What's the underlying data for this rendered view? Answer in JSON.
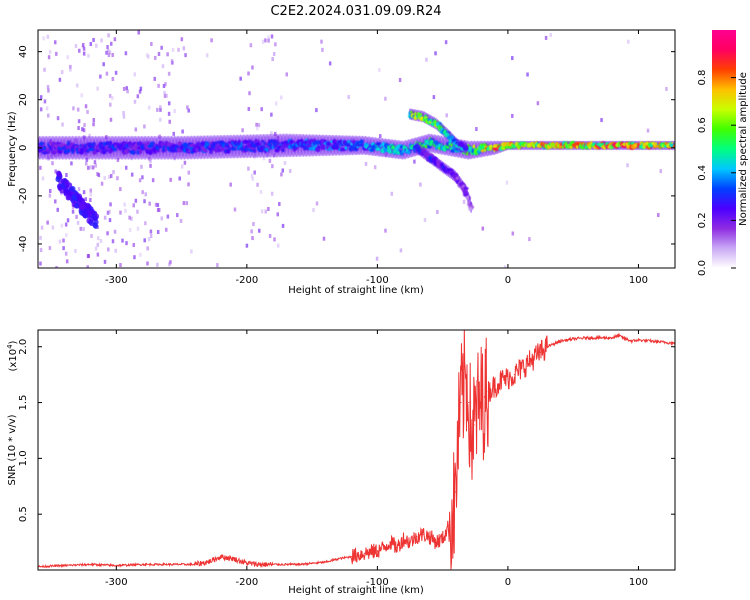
{
  "title": "C2E2.2024.031.09.09.R24",
  "chart_data": [
    {
      "type": "heatmap",
      "title": "C2E2.2024.031.09.09.R24",
      "xlabel": "Height of straight line (km)",
      "ylabel": "Frequency (Hz)",
      "xlim": [
        -360,
        128
      ],
      "ylim": [
        -50,
        49
      ],
      "x_ticks": [
        -300,
        -200,
        -100,
        0,
        100
      ],
      "y_ticks": [
        -40,
        -20,
        0,
        20,
        40
      ],
      "grid": false,
      "features": [
        {
          "name": "main-band",
          "x": [
            -360,
            -250,
            -170,
            -110,
            -80,
            -60,
            -30,
            -10,
            0,
            40,
            80,
            128
          ],
          "freq_center": [
            0,
            0,
            1,
            1,
            -1,
            2,
            -1,
            0,
            1,
            1,
            1,
            1
          ],
          "freq_halfwidth": [
            5,
            5,
            5,
            4,
            4,
            4,
            4,
            3,
            2,
            2,
            2,
            2
          ],
          "amplitude": [
            0.3,
            0.32,
            0.35,
            0.4,
            0.5,
            0.55,
            0.55,
            0.85,
            0.75,
            0.8,
            0.85,
            0.8
          ]
        },
        {
          "name": "upper-branch",
          "x": [
            -75,
            -65,
            -55,
            -45,
            -38,
            -32
          ],
          "freq_center": [
            14,
            13,
            10,
            5,
            1,
            0
          ],
          "amplitude": [
            0.6,
            0.7,
            0.6,
            0.5,
            0.45,
            0.4
          ]
        },
        {
          "name": "lower-branch",
          "x": [
            -70,
            -60,
            -50,
            -40,
            -32,
            -28
          ],
          "freq_center": [
            0,
            -4,
            -8,
            -12,
            -18,
            -25
          ],
          "amplitude": [
            0.3,
            0.3,
            0.28,
            0.25,
            0.2,
            0.15
          ]
        }
      ],
      "colorbar": {
        "label": "Normalized spectral amplitude",
        "range": [
          0.0,
          1.0
        ],
        "ticks": [
          0.0,
          0.2,
          0.4,
          0.6,
          0.8
        ],
        "colors": [
          "#ffffff",
          "#c9a8f5",
          "#8e2be2",
          "#4b00ff",
          "#0040ff",
          "#00c8ff",
          "#00ff80",
          "#40ff00",
          "#c8ff00",
          "#ffc000",
          "#ff4000",
          "#ff0060",
          "#ff0090"
        ]
      }
    },
    {
      "type": "line",
      "xlabel": "Height of straight line (km)",
      "ylabel": "SNR (10 * v/v)",
      "y_multiplier_label": "(x10",
      "y_multiplier_exp": "4",
      "y_multiplier_close": ")",
      "xlim": [
        -360,
        128
      ],
      "ylim": [
        0,
        2.15
      ],
      "x_ticks": [
        -300,
        -200,
        -100,
        0,
        100
      ],
      "y_ticks": [
        0.5,
        1.0,
        1.5,
        2.0
      ],
      "grid": false,
      "color": "#ee3333",
      "x": [
        -360,
        -340,
        -320,
        -300,
        -280,
        -260,
        -240,
        -230,
        -220,
        -210,
        -200,
        -190,
        -180,
        -160,
        -140,
        -130,
        -120,
        -110,
        -100,
        -95,
        -90,
        -85,
        -80,
        -75,
        -70,
        -65,
        -60,
        -55,
        -50,
        -45,
        -42,
        -40,
        -38,
        -36,
        -34,
        -32,
        -30,
        -28,
        -26,
        -24,
        -22,
        -20,
        -18,
        -15,
        -10,
        -5,
        0,
        5,
        10,
        15,
        20,
        25,
        30,
        40,
        50,
        60,
        70,
        80,
        85,
        90,
        95,
        100,
        110,
        120,
        128
      ],
      "y": [
        0.03,
        0.04,
        0.05,
        0.04,
        0.05,
        0.05,
        0.05,
        0.07,
        0.12,
        0.1,
        0.06,
        0.05,
        0.05,
        0.05,
        0.07,
        0.1,
        0.12,
        0.15,
        0.17,
        0.2,
        0.25,
        0.2,
        0.28,
        0.25,
        0.3,
        0.32,
        0.3,
        0.25,
        0.28,
        0.4,
        0.5,
        0.7,
        1.2,
        1.5,
        1.6,
        1.75,
        1.5,
        1.2,
        1.3,
        1.4,
        1.5,
        1.5,
        1.55,
        1.6,
        1.65,
        1.7,
        1.72,
        1.75,
        1.8,
        1.85,
        1.9,
        1.95,
        2.0,
        2.05,
        2.07,
        2.08,
        2.08,
        2.08,
        2.1,
        2.07,
        2.05,
        2.06,
        2.05,
        2.04,
        2.03
      ]
    }
  ]
}
